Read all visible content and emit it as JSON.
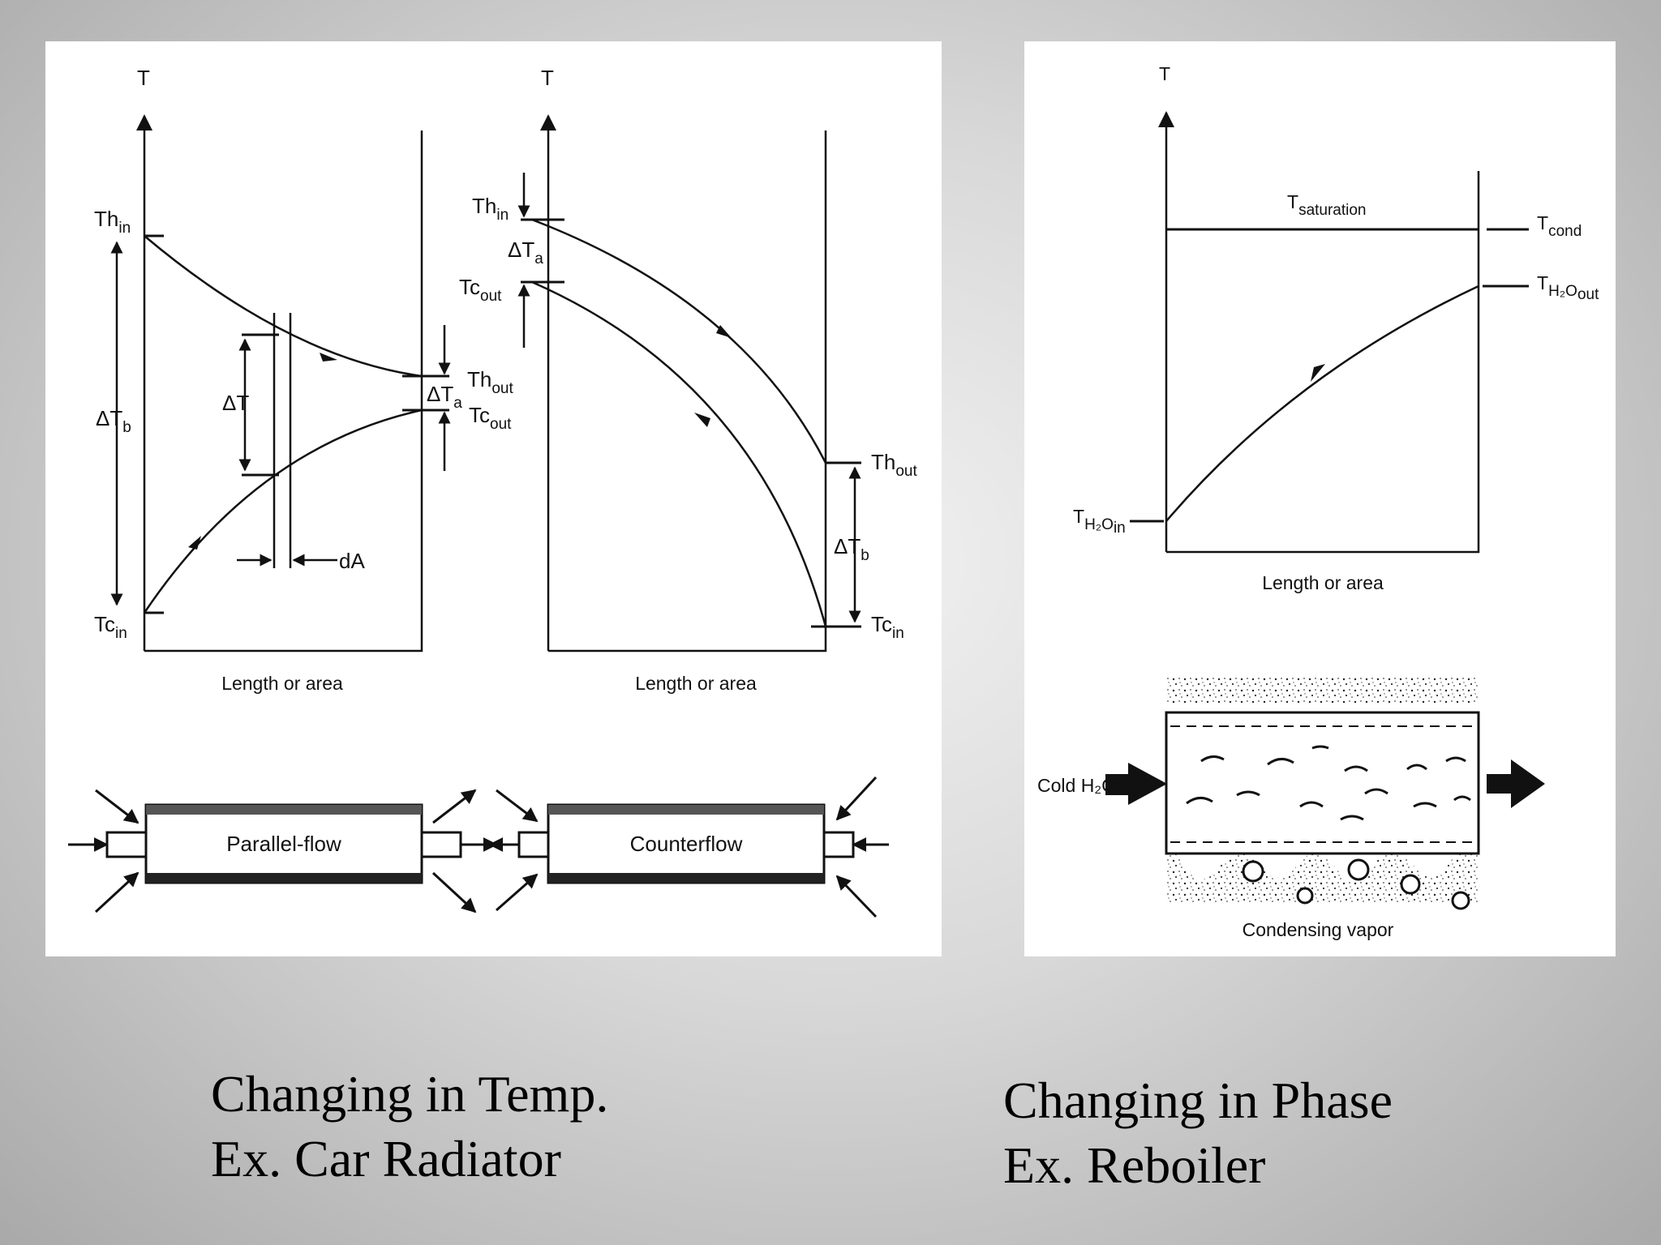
{
  "parallel_diagram": {
    "t_axis": "T",
    "th_in": "Th",
    "th_in_sub": "in",
    "tc_in": "Tc",
    "tc_in_sub": "in",
    "delta_tb": "ΔT",
    "delta_tb_sub": "b",
    "delta_t": "ΔT",
    "delta_ta": "ΔT",
    "delta_ta_sub": "a",
    "th_out": "Th",
    "th_out_sub": "out",
    "tc_out": "Tc",
    "tc_out_sub": "out",
    "da": "dA",
    "xlabel": "Length or area",
    "pipe_label": "Parallel-flow"
  },
  "counter_diagram": {
    "t_axis": "T",
    "th_in": "Th",
    "th_in_sub": "in",
    "delta_ta": "ΔT",
    "delta_ta_sub": "a",
    "tc_out": "Tc",
    "tc_out_sub": "out",
    "th_out": "Th",
    "th_out_sub": "out",
    "delta_tb": "ΔT",
    "delta_tb_sub": "b",
    "tc_in": "Tc",
    "tc_in_sub": "in",
    "xlabel": "Length or area",
    "pipe_label": "Counterflow"
  },
  "phase_diagram": {
    "t_axis": "T",
    "t_saturation": "T",
    "t_saturation_sub": "saturation",
    "t_cond": "T",
    "t_cond_sub": "cond",
    "h2o_out": "T",
    "h2o_out_sub": "H₂O",
    "h2o_out_sub2": "out",
    "h2o_in": "T",
    "h2o_in_sub": "H₂O",
    "h2o_in_sub2": "in",
    "xlabel": "Length or area",
    "cold_label": "Cold H₂O",
    "vapor_label": "Condensing vapor"
  },
  "captions": {
    "left_line1": "Changing in Temp.",
    "left_line2": "Ex. Car Radiator",
    "right_line1": "Changing in Phase",
    "right_line2": "Ex. Reboiler"
  }
}
